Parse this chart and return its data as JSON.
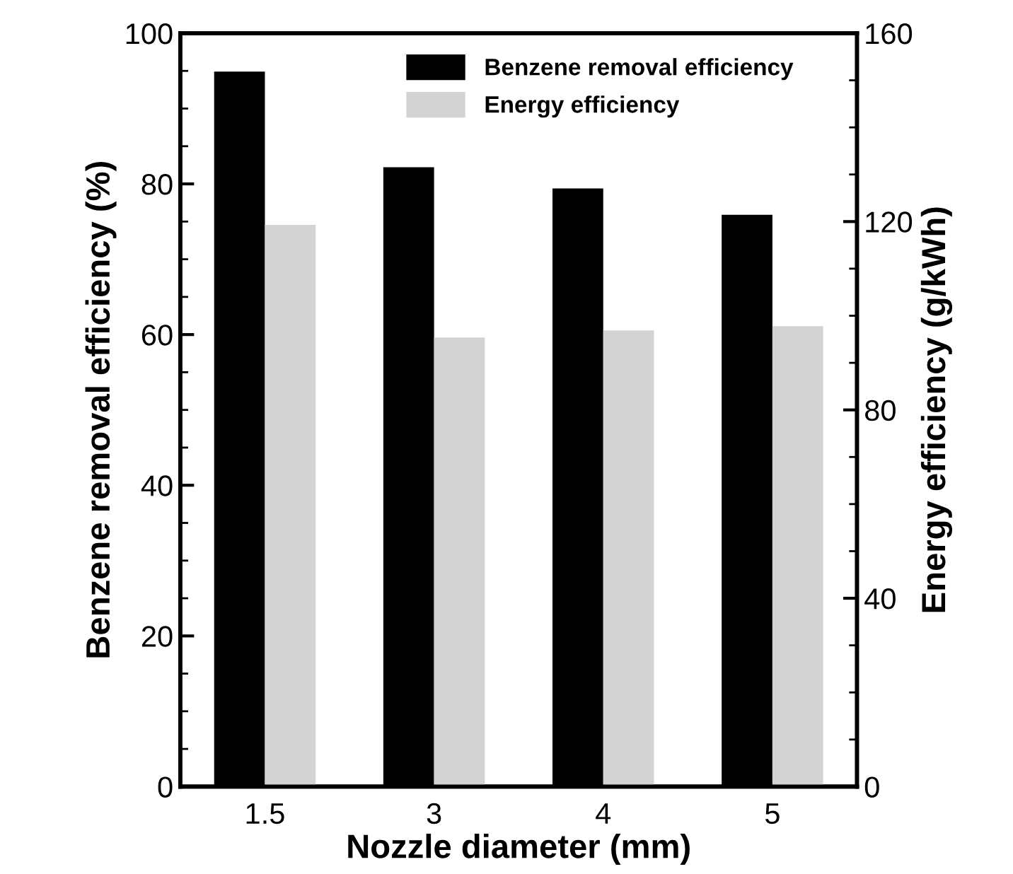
{
  "chart_data": {
    "type": "bar",
    "xlabel": "Nozzle diameter (mm)",
    "ylabel": "Benzene removal efficiency (%)",
    "y2label": "Energy efficiency (g/kWh)",
    "categories": [
      "1.5",
      "3",
      "4",
      "5"
    ],
    "series": [
      {
        "name": "Benzene removal efficiency",
        "color": "#000000",
        "values": [
          94.9,
          82.2,
          79.4,
          75.9
        ]
      },
      {
        "name": "Energy efficiency",
        "color": "#d3d3d3",
        "values": [
          119.3,
          95.4,
          96.9,
          97.8
        ],
        "axis": "y2"
      }
    ],
    "ylim": [
      0,
      100
    ],
    "yticks": [
      0,
      {
        "value": 5,
        "label": null
      },
      {
        "value": 10,
        "label": null
      },
      {
        "value": 15,
        "label": null
      },
      20,
      {
        "value": 25,
        "label": null
      },
      {
        "value": 30,
        "label": null
      },
      {
        "value": 35,
        "label": null
      },
      40,
      {
        "value": 45,
        "label": null
      },
      {
        "value": 50,
        "label": null
      },
      {
        "value": 55,
        "label": null
      },
      60,
      {
        "value": 65,
        "label": null
      },
      {
        "value": 70,
        "label": null
      },
      {
        "value": 75,
        "label": null
      },
      80,
      {
        "value": 85,
        "label": null
      },
      {
        "value": 90,
        "label": null
      },
      {
        "value": 95,
        "label": null
      },
      100
    ],
    "y2lim": [
      0,
      160
    ],
    "y2ticks": [
      0,
      {
        "value": 10,
        "label": null
      },
      {
        "value": 20,
        "label": null
      },
      {
        "value": 30,
        "label": null
      },
      40,
      {
        "value": 50,
        "label": null
      },
      {
        "value": 60,
        "label": null
      },
      {
        "value": 70,
        "label": null
      },
      80,
      {
        "value": 90,
        "label": null
      },
      {
        "value": 100,
        "label": null
      },
      {
        "value": 110,
        "label": null
      },
      120,
      {
        "value": 130,
        "label": null
      },
      {
        "value": 140,
        "label": null
      },
      {
        "value": 150,
        "label": null
      },
      160
    ],
    "legend": "top",
    "grid": false
  }
}
